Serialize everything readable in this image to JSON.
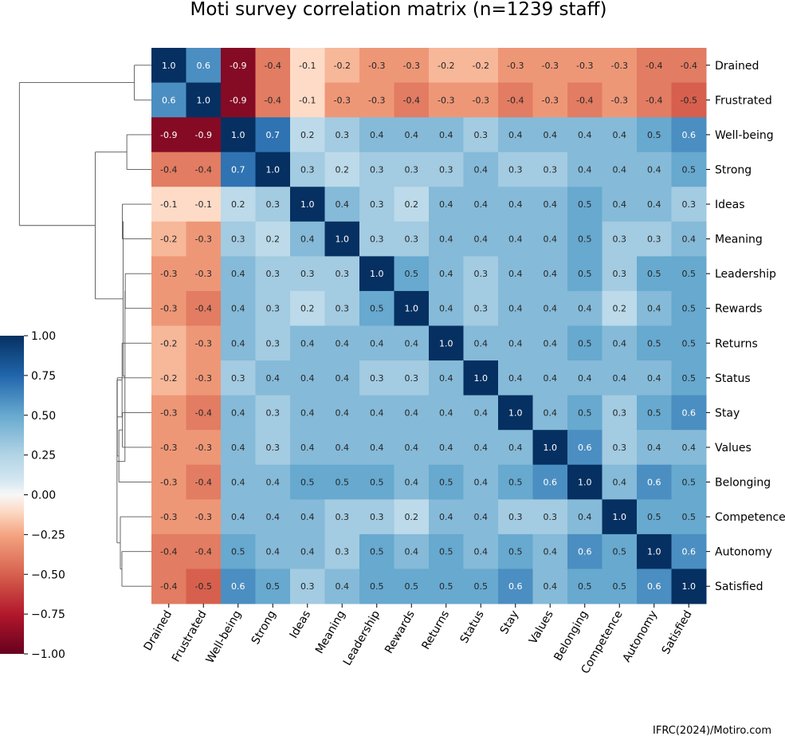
{
  "chart_data": {
    "type": "heatmap",
    "title": "Moti survey correlation matrix (n=1239 staff)",
    "row_labels": [
      "Drained",
      "Frustrated",
      "Well-being",
      "Strong",
      "Ideas",
      "Meaning",
      "Leadership",
      "Rewards",
      "Returns",
      "Status",
      "Stay",
      "Values",
      "Belonging",
      "Competence",
      "Autonomy",
      "Satisfied"
    ],
    "col_labels": [
      "Drained",
      "Frustrated",
      "Well-being",
      "Strong",
      "Ideas",
      "Meaning",
      "Leadership",
      "Rewards",
      "Returns",
      "Status",
      "Stay",
      "Values",
      "Belonging",
      "Competence",
      "Autonomy",
      "Satisfied"
    ],
    "values": [
      [
        1.0,
        0.6,
        -0.9,
        -0.4,
        -0.1,
        -0.2,
        -0.3,
        -0.3,
        -0.2,
        -0.2,
        -0.3,
        -0.3,
        -0.3,
        -0.3,
        -0.4,
        -0.4
      ],
      [
        0.6,
        1.0,
        -0.9,
        -0.4,
        -0.1,
        -0.3,
        -0.3,
        -0.4,
        -0.3,
        -0.3,
        -0.4,
        -0.3,
        -0.4,
        -0.3,
        -0.4,
        -0.5
      ],
      [
        -0.9,
        -0.9,
        1.0,
        0.7,
        0.2,
        0.3,
        0.4,
        0.4,
        0.4,
        0.3,
        0.4,
        0.4,
        0.4,
        0.4,
        0.5,
        0.6
      ],
      [
        -0.4,
        -0.4,
        0.7,
        1.0,
        0.3,
        0.2,
        0.3,
        0.3,
        0.3,
        0.4,
        0.3,
        0.3,
        0.4,
        0.4,
        0.4,
        0.5
      ],
      [
        -0.1,
        -0.1,
        0.2,
        0.3,
        1.0,
        0.4,
        0.3,
        0.2,
        0.4,
        0.4,
        0.4,
        0.4,
        0.5,
        0.4,
        0.4,
        0.3
      ],
      [
        -0.2,
        -0.3,
        0.3,
        0.2,
        0.4,
        1.0,
        0.3,
        0.3,
        0.4,
        0.4,
        0.4,
        0.4,
        0.5,
        0.3,
        0.3,
        0.4
      ],
      [
        -0.3,
        -0.3,
        0.4,
        0.3,
        0.3,
        0.3,
        1.0,
        0.5,
        0.4,
        0.3,
        0.4,
        0.4,
        0.5,
        0.3,
        0.5,
        0.5
      ],
      [
        -0.3,
        -0.4,
        0.4,
        0.3,
        0.2,
        0.3,
        0.5,
        1.0,
        0.4,
        0.3,
        0.4,
        0.4,
        0.4,
        0.2,
        0.4,
        0.5
      ],
      [
        -0.2,
        -0.3,
        0.4,
        0.3,
        0.4,
        0.4,
        0.4,
        0.4,
        1.0,
        0.4,
        0.4,
        0.4,
        0.5,
        0.4,
        0.5,
        0.5
      ],
      [
        -0.2,
        -0.3,
        0.3,
        0.4,
        0.4,
        0.4,
        0.3,
        0.3,
        0.4,
        1.0,
        0.4,
        0.4,
        0.4,
        0.4,
        0.4,
        0.5
      ],
      [
        -0.3,
        -0.4,
        0.4,
        0.3,
        0.4,
        0.4,
        0.4,
        0.4,
        0.4,
        0.4,
        1.0,
        0.4,
        0.5,
        0.3,
        0.5,
        0.6
      ],
      [
        -0.3,
        -0.3,
        0.4,
        0.3,
        0.4,
        0.4,
        0.4,
        0.4,
        0.4,
        0.4,
        0.4,
        1.0,
        0.6,
        0.3,
        0.4,
        0.4
      ],
      [
        -0.3,
        -0.4,
        0.4,
        0.4,
        0.5,
        0.5,
        0.5,
        0.4,
        0.5,
        0.4,
        0.5,
        0.6,
        1.0,
        0.4,
        0.6,
        0.5
      ],
      [
        -0.3,
        -0.3,
        0.4,
        0.4,
        0.4,
        0.3,
        0.3,
        0.2,
        0.4,
        0.4,
        0.3,
        0.3,
        0.4,
        1.0,
        0.5,
        0.5
      ],
      [
        -0.4,
        -0.4,
        0.5,
        0.4,
        0.4,
        0.3,
        0.5,
        0.4,
        0.5,
        0.4,
        0.5,
        0.4,
        0.6,
        0.5,
        1.0,
        0.6
      ],
      [
        -0.4,
        -0.5,
        0.6,
        0.5,
        0.3,
        0.4,
        0.5,
        0.5,
        0.5,
        0.5,
        0.6,
        0.4,
        0.5,
        0.5,
        0.6,
        1.0
      ]
    ],
    "colorbar": {
      "min": -1.0,
      "max": 1.0,
      "ticks": [
        "−1.00",
        "−0.75",
        "−0.50",
        "−0.25",
        "0.00",
        "0.25",
        "0.50",
        "0.75",
        "1.00"
      ],
      "colormap": "RdBu"
    },
    "row_dendrogram": true
  },
  "source_note": "IFRC(2024)/Motiro.com"
}
